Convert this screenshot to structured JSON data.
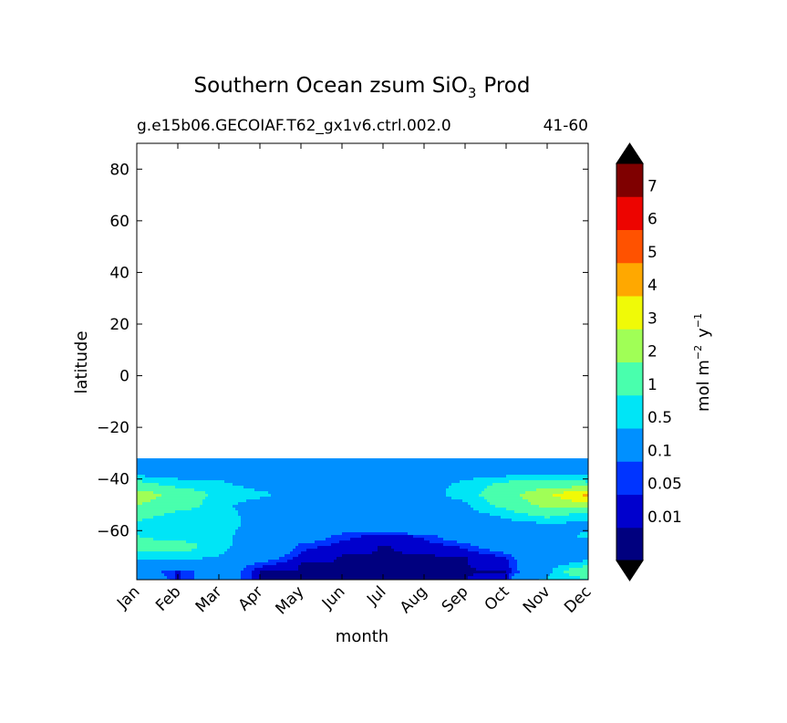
{
  "chart_data": {
    "type": "contour",
    "title": "Southern Ocean zsum SiO",
    "title_sub": "3",
    "title_suffix": "Prod",
    "subtitle_left": "g.e15b06.GECOIAF.T62_gx1v6.ctrl.002.0",
    "subtitle_right": "41-60",
    "xlabel": "month",
    "ylabel": "latitude",
    "x_ticks": [
      "Jan",
      "Feb",
      "Mar",
      "Apr",
      "May",
      "Jun",
      "Jul",
      "Aug",
      "Sep",
      "Oct",
      "Nov",
      "Dec"
    ],
    "y_ticks": [
      80,
      60,
      40,
      20,
      0,
      -20,
      -40,
      -60
    ],
    "y_tick_labels": [
      "80",
      "60",
      "40",
      "20",
      "0",
      "−20",
      "−40",
      "−60"
    ],
    "ylim": [
      -79,
      90
    ],
    "data_lat_range": [
      -79,
      -32
    ],
    "colorbar": {
      "label": "mol m",
      "label_sup1": "−2",
      "label_mid": "y",
      "label_sup2": "−1",
      "levels": [
        "0.01",
        "0.05",
        "0.1",
        "0.5",
        "1",
        "2",
        "3",
        "4",
        "5",
        "6",
        "7"
      ],
      "colors": [
        "#00007f",
        "#0000cd",
        "#0034ff",
        "#0090ff",
        "#00e5f6",
        "#49ffad",
        "#a0ff56",
        "#f0fa07",
        "#ffa800",
        "#ff5200",
        "#ed0400",
        "#7f0000"
      ],
      "under_color": "#000000",
      "over_color": "#000000",
      "extend": "both"
    },
    "field_lat": [
      -32,
      -34,
      -38,
      -42,
      -46,
      -50,
      -54,
      -58,
      -62,
      -66,
      -70,
      -73,
      -76,
      -79
    ],
    "field": [
      [
        0.07,
        0.07,
        0.07,
        0.07,
        0.07,
        0.07,
        0.07,
        0.07,
        0.07,
        0.07,
        0.07,
        0.07
      ],
      [
        0.3,
        0.3,
        0.3,
        0.3,
        0.3,
        0.3,
        0.3,
        0.3,
        0.3,
        0.3,
        0.3,
        0.3
      ],
      [
        0.3,
        0.3,
        0.3,
        0.3,
        0.3,
        0.3,
        0.3,
        0.3,
        0.3,
        0.3,
        0.3,
        0.3
      ],
      [
        1.3,
        0.7,
        0.6,
        0.3,
        0.3,
        0.3,
        0.3,
        0.3,
        0.6,
        1.2,
        1.5,
        1.2
      ],
      [
        2.6,
        1.6,
        0.8,
        0.6,
        0.3,
        0.3,
        0.3,
        0.3,
        0.7,
        1.6,
        2.8,
        4.3
      ],
      [
        2.0,
        1.5,
        0.6,
        0.3,
        0.3,
        0.3,
        0.3,
        0.3,
        0.4,
        1.3,
        2.4,
        2.6
      ],
      [
        1.4,
        0.7,
        0.7,
        0.3,
        0.3,
        0.3,
        0.3,
        0.3,
        0.3,
        0.6,
        1.2,
        0.6
      ],
      [
        0.7,
        0.5,
        0.7,
        0.3,
        0.3,
        0.2,
        0.3,
        0.3,
        0.3,
        0.3,
        0.3,
        0.4
      ],
      [
        1.0,
        0.5,
        0.6,
        0.3,
        0.2,
        0.07,
        0.03,
        0.06,
        0.2,
        0.3,
        0.3,
        0.6
      ],
      [
        1.4,
        1.5,
        0.6,
        0.3,
        0.07,
        0.03,
        0.008,
        0.02,
        0.06,
        0.2,
        0.3,
        0.3
      ],
      [
        0.7,
        0.7,
        0.5,
        0.2,
        0.03,
        0.008,
        0.008,
        0.008,
        0.008,
        0.05,
        0.3,
        0.3
      ],
      [
        0.3,
        0.3,
        0.2,
        0.07,
        0.008,
        0.008,
        0.004,
        0.004,
        0.008,
        0.03,
        0.3,
        0.7
      ],
      [
        0.2,
        0.04,
        0.2,
        0.008,
        0.008,
        0.008,
        0.004,
        0.008,
        0.008,
        0.008,
        0.3,
        2.0
      ],
      [
        0.3,
        0.04,
        0.2,
        0.008,
        0.008,
        0.006,
        0.006,
        0.008,
        0.008,
        0.04,
        0.6,
        0.8
      ]
    ]
  }
}
